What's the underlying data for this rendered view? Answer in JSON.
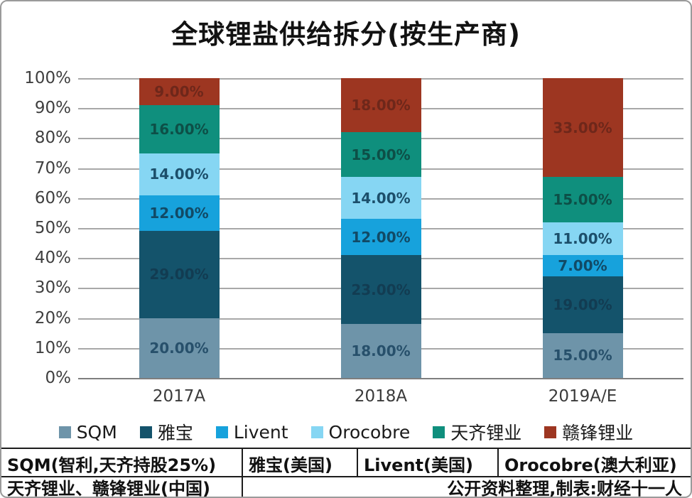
{
  "title": "全球锂盐供给拆分(按生产商)",
  "chart_data": {
    "type": "bar",
    "stacked": true,
    "title": "全球锂盐供给拆分(按生产商)",
    "categories": [
      "2017A",
      "2018A",
      "2019A/E"
    ],
    "series": [
      {
        "name": "SQM",
        "color": "#6e94a9",
        "label_color": "#27506b",
        "values": [
          20,
          18,
          15
        ]
      },
      {
        "name": "雅宝",
        "color": "#14536b",
        "label_color": "#123c52",
        "values": [
          29,
          23,
          19
        ]
      },
      {
        "name": "Livent",
        "color": "#17a2dc",
        "label_color": "#114a66",
        "values": [
          12,
          12,
          7
        ]
      },
      {
        "name": "Orocobre",
        "color": "#86d6f3",
        "label_color": "#1c4f6b",
        "values": [
          14,
          14,
          11
        ]
      },
      {
        "name": "天齐锂业",
        "color": "#0f8f7d",
        "label_color": "#0d4f47",
        "values": [
          16,
          15,
          15
        ]
      },
      {
        "name": "赣锋锂业",
        "color": "#9d3621",
        "label_color": "#6e271a",
        "values": [
          9,
          18,
          33
        ]
      }
    ],
    "value_format": "0.00%",
    "y_ticks": [
      "100%",
      "90%",
      "80%",
      "70%",
      "60%",
      "50%",
      "40%",
      "30%",
      "20%",
      "10%",
      "0%"
    ],
    "ylim": [
      0,
      100
    ],
    "grid": true,
    "legend_position": "bottom"
  },
  "footer": {
    "row1": [
      "SQM(智利,天齐持股25%)",
      "雅宝(美国)",
      "Livent(美国)",
      "Orocobre(澳大利亚)"
    ],
    "row2_left": "天齐锂业、赣锋锂业(中国)",
    "row2_right": "公开资料整理,制表:财经十一人"
  }
}
